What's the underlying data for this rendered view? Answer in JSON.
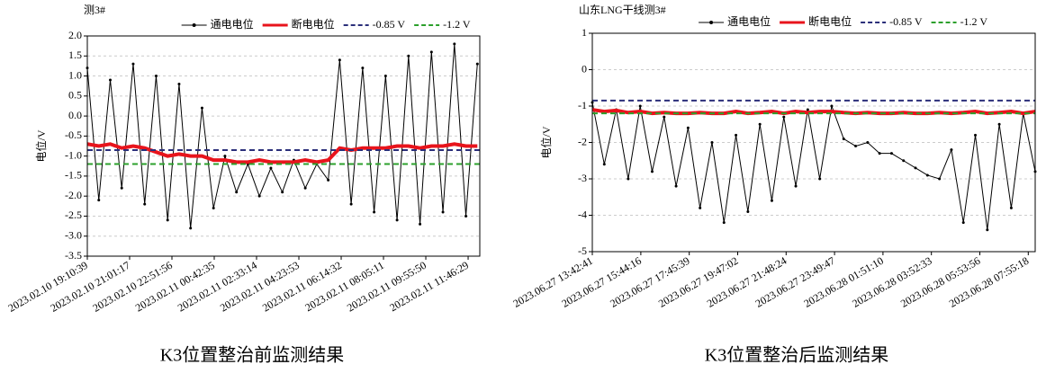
{
  "chart_data": [
    {
      "type": "line",
      "title": "测3#",
      "y_label": "电位/V",
      "caption": "K3位置整治前监测结果",
      "grid": true,
      "legend": "top",
      "x": [
        "2023.02.10 19:10:39",
        "2023.02.10 19:40:39",
        "2023.02.10 20:10:39",
        "2023.02.10 20:40:39",
        "2023.02.10 21:10:39",
        "2023.02.10 21:40:39",
        "2023.02.10 22:10:39",
        "2023.02.10 22:40:39",
        "2023.02.10 23:10:39",
        "2023.02.10 23:40:39",
        "2023.02.11 00:10:39",
        "2023.02.11 00:40:39",
        "2023.02.11 01:10:39",
        "2023.02.11 01:40:39",
        "2023.02.11 02:10:39",
        "2023.02.11 02:40:39",
        "2023.02.11 03:10:39",
        "2023.02.11 03:40:39",
        "2023.02.11 04:10:39",
        "2023.02.11 04:40:39",
        "2023.02.11 05:10:39",
        "2023.02.11 05:40:39",
        "2023.02.11 06:10:39",
        "2023.02.11 06:40:39",
        "2023.02.11 07:10:39",
        "2023.02.11 07:40:39",
        "2023.02.11 08:10:39",
        "2023.02.11 08:40:39",
        "2023.02.11 09:10:39",
        "2023.02.11 09:40:39",
        "2023.02.11 10:10:39",
        "2023.02.11 10:40:39",
        "2023.02.11 11:10:39",
        "2023.02.11 11:40:39",
        "2023.02.11 12:10:39"
      ],
      "series": [
        {
          "name": "通电电位",
          "color": "#000000",
          "values": [
            1.2,
            -2.1,
            0.9,
            -1.8,
            1.3,
            -2.2,
            1.0,
            -2.6,
            0.8,
            -2.8,
            0.2,
            -2.3,
            -1.0,
            -1.9,
            -1.2,
            -2.0,
            -1.3,
            -1.9,
            -1.1,
            -1.8,
            -1.2,
            -1.6,
            1.4,
            -2.2,
            1.2,
            -2.4,
            1.0,
            -2.6,
            1.5,
            -2.7,
            1.6,
            -2.4,
            1.8,
            -2.5,
            1.3
          ]
        },
        {
          "name": "断电电位",
          "color": "#e8141c",
          "values": [
            -0.7,
            -0.75,
            -0.7,
            -0.8,
            -0.75,
            -0.8,
            -0.9,
            -1.0,
            -0.95,
            -1.0,
            -1.0,
            -1.1,
            -1.1,
            -1.15,
            -1.15,
            -1.1,
            -1.15,
            -1.15,
            -1.15,
            -1.1,
            -1.15,
            -1.1,
            -0.8,
            -0.85,
            -0.8,
            -0.8,
            -0.8,
            -0.75,
            -0.75,
            -0.8,
            -0.75,
            -0.75,
            -0.7,
            -0.75,
            -0.75
          ]
        }
      ],
      "reference_lines": [
        {
          "name": "-0.85 V",
          "value": -0.85,
          "color": "#2b2f7a"
        },
        {
          "name": "-1.2 V",
          "value": -1.2,
          "color": "#2ca02c"
        }
      ],
      "xlim": [
        "2023.02.10 19:10:39",
        "2023.02.11 12:17:00"
      ],
      "xticks": [
        "2023.02.10 19:10:39",
        "2023.02.10 21:01:17",
        "2023.02.10 22:51:56",
        "2023.02.11 00:42:35",
        "2023.02.11 02:33:14",
        "2023.02.11 04:23:53",
        "2023.02.11 06:14:32",
        "2023.02.11 08:05:11",
        "2023.02.11 09:55:50",
        "2023.02.11 11:46:29"
      ],
      "ylim": [
        -3.5,
        2
      ],
      "yticks": [
        {
          "value": 2,
          "label": "2.0"
        },
        1.5,
        {
          "value": 1,
          "label": "1.0"
        },
        0.5,
        {
          "value": 0,
          "label": "0.0"
        },
        -0.5,
        {
          "value": -1,
          "label": "-1.0"
        },
        -1.5,
        {
          "value": -2,
          "label": "-2.0"
        },
        -2.5,
        {
          "value": -3,
          "label": "-3.0"
        },
        -3.5
      ]
    },
    {
      "type": "line",
      "title": "山东LNG干线测3#",
      "y_label": "电位/V",
      "caption": "K3位置整治后监测结果",
      "grid": true,
      "legend": "top",
      "x": [
        "2023.06.27 13:42:41",
        "2023.06.27 14:12:41",
        "2023.06.27 14:42:41",
        "2023.06.27 15:12:41",
        "2023.06.27 15:42:41",
        "2023.06.27 16:12:41",
        "2023.06.27 16:42:41",
        "2023.06.27 17:12:41",
        "2023.06.27 17:42:41",
        "2023.06.27 18:12:41",
        "2023.06.27 18:42:41",
        "2023.06.27 19:12:41",
        "2023.06.27 19:42:41",
        "2023.06.27 20:12:41",
        "2023.06.27 20:42:41",
        "2023.06.27 21:12:41",
        "2023.06.27 21:42:41",
        "2023.06.27 22:12:41",
        "2023.06.27 22:42:41",
        "2023.06.27 23:12:41",
        "2023.06.27 23:42:41",
        "2023.06.28 00:12:41",
        "2023.06.28 00:42:41",
        "2023.06.28 01:12:41",
        "2023.06.28 01:42:41",
        "2023.06.28 02:12:41",
        "2023.06.28 02:42:41",
        "2023.06.28 03:12:41",
        "2023.06.28 03:42:41",
        "2023.06.28 04:12:41",
        "2023.06.28 04:42:41",
        "2023.06.28 05:12:41",
        "2023.06.28 05:42:41",
        "2023.06.28 06:12:41",
        "2023.06.28 06:42:41",
        "2023.06.28 07:12:41",
        "2023.06.28 07:42:41",
        "2023.06.28 08:12:41"
      ],
      "series": [
        {
          "name": "通电电位",
          "color": "#000000",
          "values": [
            -0.9,
            -2.6,
            -1.1,
            -3.0,
            -1.0,
            -2.8,
            -1.3,
            -3.2,
            -1.6,
            -3.8,
            -2.0,
            -4.2,
            -1.8,
            -3.9,
            -1.5,
            -3.6,
            -1.3,
            -3.2,
            -1.1,
            -3.0,
            -1.0,
            -1.9,
            -2.1,
            -2.0,
            -2.3,
            -2.3,
            -2.5,
            -2.7,
            -2.9,
            -3.0,
            -2.2,
            -4.2,
            -1.8,
            -4.4,
            -1.5,
            -3.8,
            -1.2,
            -2.8
          ]
        },
        {
          "name": "断电电位",
          "color": "#e8141c",
          "values": [
            -1.1,
            -1.15,
            -1.12,
            -1.18,
            -1.15,
            -1.2,
            -1.18,
            -1.2,
            -1.2,
            -1.18,
            -1.2,
            -1.2,
            -1.15,
            -1.2,
            -1.18,
            -1.15,
            -1.2,
            -1.15,
            -1.18,
            -1.15,
            -1.15,
            -1.18,
            -1.2,
            -1.18,
            -1.2,
            -1.2,
            -1.18,
            -1.2,
            -1.2,
            -1.18,
            -1.2,
            -1.18,
            -1.15,
            -1.2,
            -1.18,
            -1.15,
            -1.2,
            -1.15
          ]
        }
      ],
      "reference_lines": [
        {
          "name": "-0.85 V",
          "value": -0.85,
          "color": "#2b2f7a"
        },
        {
          "name": "-1.2 V",
          "value": -1.2,
          "color": "#2ca02c"
        }
      ],
      "xlim": [
        "2023.06.27 13:42:41",
        "2023.06.28 08:12:41"
      ],
      "xticks": [
        "2023.06.27 13:42:41",
        "2023.06.27 15:44:16",
        "2023.06.27 17:45:39",
        "2023.06.27 19:47:02",
        "2023.06.27 21:48:24",
        "2023.06.27 23:49:47",
        "2023.06.28 01:51:10",
        "2023.06.28 03:52:33",
        "2023.06.28 05:53:56",
        "2023.06.28 07:55:18"
      ],
      "ylim": [
        -5,
        1
      ],
      "yticks": [
        1,
        0,
        -1,
        -2,
        -3,
        -4,
        -5
      ]
    }
  ]
}
